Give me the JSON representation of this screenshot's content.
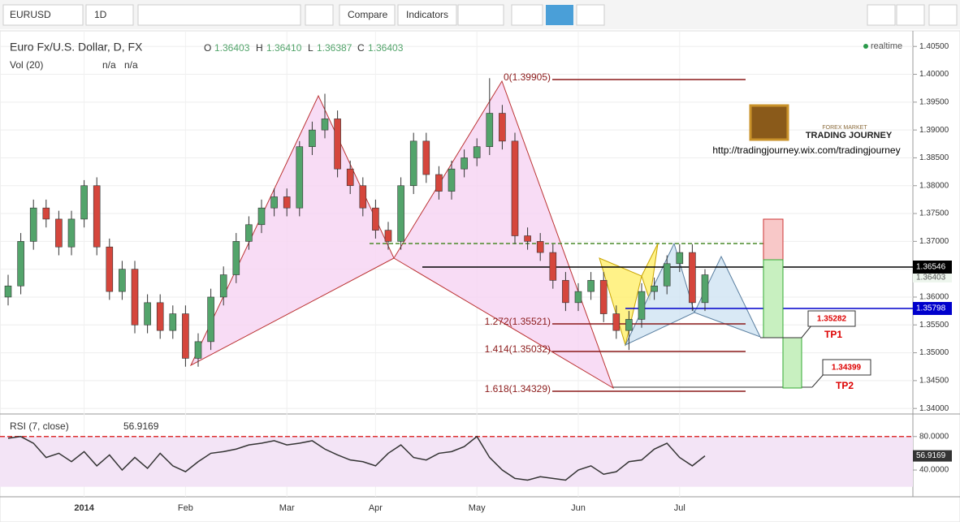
{
  "toolbar": {
    "symbol": "EURUSD",
    "interval": "1D",
    "compare": "Compare",
    "indicators": "Indicators"
  },
  "header": {
    "title": "Euro Fx/U.S. Dollar, D, FX",
    "o_label": "O",
    "o": "1.36403",
    "h_label": "H",
    "h": "1.36410",
    "l_label": "L",
    "l": "1.36387",
    "c_label": "C",
    "c": "1.36403",
    "vol": "Vol (20)",
    "vol_a": "n/a",
    "vol_b": "n/a",
    "realtime": "realtime"
  },
  "logo": {
    "small": "FOREX MARKET",
    "big": "TRADING JOURNEY",
    "url": "http://tradingjourney.wix.com/tradingjourney"
  },
  "fib_labels": [
    "0(1.39905)",
    "1.272(1.35521)",
    "1.414(1.35032)",
    "1.618(1.34329)"
  ],
  "price_tags": {
    "black": "1.36546",
    "current": "1.36403",
    "blue": "1.35798"
  },
  "targets": {
    "tp1_price": "1.35282",
    "tp1": "TP1",
    "tp2_price": "1.34399",
    "tp2": "TP2"
  },
  "chart_data": {
    "type": "candlestick",
    "categories": [
      null,
      null,
      null,
      null,
      null,
      null,
      "2014",
      null,
      null,
      null,
      null,
      null,
      null,
      null,
      "Feb",
      null,
      null,
      null,
      null,
      null,
      null,
      null,
      "Mar",
      null,
      null,
      null,
      null,
      null,
      null,
      "Apr",
      null,
      null,
      null,
      null,
      null,
      null,
      null,
      "May",
      null,
      null,
      null,
      null,
      null,
      null,
      null,
      "Jun",
      null,
      null,
      null,
      null,
      null,
      null,
      null,
      "Jul",
      null,
      null
    ],
    "open": [
      1.36,
      1.362,
      1.37,
      1.376,
      1.374,
      1.369,
      1.374,
      1.38,
      1.369,
      1.361,
      1.365,
      1.355,
      1.359,
      1.354,
      1.357,
      1.349,
      1.352,
      1.36,
      1.364,
      1.37,
      1.373,
      1.376,
      1.378,
      1.376,
      1.387,
      1.39,
      1.392,
      1.383,
      1.38,
      1.376,
      1.372,
      1.37,
      1.38,
      1.388,
      1.382,
      1.379,
      1.383,
      1.385,
      1.387,
      1.393,
      1.388,
      1.371,
      1.37,
      1.368,
      1.363,
      1.359,
      1.361,
      1.363,
      1.357,
      1.354,
      1.356,
      1.361,
      1.362,
      1.366,
      1.368,
      1.359
    ],
    "high": [
      1.364,
      1.3715,
      1.3775,
      1.3775,
      1.3755,
      1.3755,
      1.381,
      1.3815,
      1.3705,
      1.3665,
      1.3665,
      1.3605,
      1.3605,
      1.3585,
      1.3585,
      1.3535,
      1.3615,
      1.3655,
      1.3715,
      1.3745,
      1.3775,
      1.3795,
      1.3795,
      1.388,
      1.3915,
      1.3965,
      1.3935,
      1.3845,
      1.3815,
      1.3775,
      1.3735,
      1.3815,
      1.3895,
      1.3895,
      1.3835,
      1.3845,
      1.3865,
      1.3885,
      1.3993,
      1.3945,
      1.3895,
      1.3725,
      1.3715,
      1.3695,
      1.3645,
      1.3625,
      1.3645,
      1.3645,
      1.3585,
      1.3575,
      1.3625,
      1.3635,
      1.3675,
      1.3695,
      1.3695,
      1.365
    ],
    "low": [
      1.3585,
      1.3605,
      1.3685,
      1.3725,
      1.3675,
      1.3675,
      1.3725,
      1.3675,
      1.3595,
      1.3595,
      1.3535,
      1.3535,
      1.3525,
      1.3525,
      1.3475,
      1.3475,
      1.3505,
      1.3585,
      1.3625,
      1.3685,
      1.3715,
      1.3745,
      1.3745,
      1.3745,
      1.3855,
      1.3885,
      1.3815,
      1.3785,
      1.3745,
      1.3705,
      1.3685,
      1.3685,
      1.3785,
      1.3805,
      1.3775,
      1.3775,
      1.3815,
      1.3835,
      1.3855,
      1.3865,
      1.3695,
      1.3685,
      1.3665,
      1.3615,
      1.3575,
      1.3575,
      1.3595,
      1.3555,
      1.3525,
      1.3505,
      1.3545,
      1.3595,
      1.3605,
      1.3645,
      1.3575,
      1.3575
    ],
    "close": [
      1.362,
      1.37,
      1.376,
      1.374,
      1.369,
      1.374,
      1.38,
      1.369,
      1.361,
      1.365,
      1.355,
      1.359,
      1.354,
      1.357,
      1.349,
      1.352,
      1.36,
      1.364,
      1.37,
      1.373,
      1.376,
      1.378,
      1.376,
      1.387,
      1.39,
      1.392,
      1.383,
      1.38,
      1.376,
      1.372,
      1.37,
      1.38,
      1.388,
      1.382,
      1.379,
      1.383,
      1.385,
      1.387,
      1.393,
      1.388,
      1.371,
      1.37,
      1.368,
      1.363,
      1.359,
      1.361,
      1.363,
      1.357,
      1.354,
      1.356,
      1.361,
      1.362,
      1.366,
      1.368,
      1.359,
      1.364
    ],
    "up_color": "#53a46b",
    "down_color": "#d5463c",
    "ylim": [
      1.3393,
      1.4078
    ],
    "yticks": [
      {
        "value": 1.405,
        "label": "1.40500"
      },
      {
        "value": 1.4,
        "label": "1.40000"
      },
      {
        "value": 1.395,
        "label": "1.39500"
      },
      {
        "value": 1.39,
        "label": "1.39000"
      },
      {
        "value": 1.385,
        "label": "1.38500"
      },
      {
        "value": 1.38,
        "label": "1.38000"
      },
      {
        "value": 1.375,
        "label": "1.37500"
      },
      {
        "value": 1.37,
        "label": "1.37000"
      },
      {
        "value": 1.365,
        "label": "1.36500"
      },
      {
        "value": 1.36,
        "label": "1.36000"
      },
      {
        "value": 1.355,
        "label": "1.35500"
      },
      {
        "value": 1.35,
        "label": "1.35000"
      },
      {
        "value": 1.345,
        "label": "1.34500"
      },
      {
        "value": 1.34,
        "label": "1.34000"
      }
    ],
    "rsi": {
      "label": "RSI (7, close)",
      "last_label": "56.9169",
      "color": "#333333",
      "values": [
        78,
        80,
        72,
        55,
        60,
        50,
        62,
        45,
        58,
        40,
        55,
        42,
        60,
        45,
        38,
        50,
        60,
        62,
        65,
        70,
        72,
        75,
        70,
        72,
        75,
        65,
        58,
        52,
        50,
        45,
        60,
        70,
        55,
        52,
        60,
        62,
        68,
        80,
        55,
        40,
        30,
        28,
        32,
        30,
        28,
        40,
        45,
        35,
        38,
        50,
        52,
        65,
        72,
        55,
        45,
        56.9169
      ],
      "ylim": [
        10,
        105
      ],
      "yticks": [
        {
          "value": 80,
          "label": "80.0000"
        },
        {
          "value": 40,
          "label": "40.0000"
        }
      ]
    }
  }
}
